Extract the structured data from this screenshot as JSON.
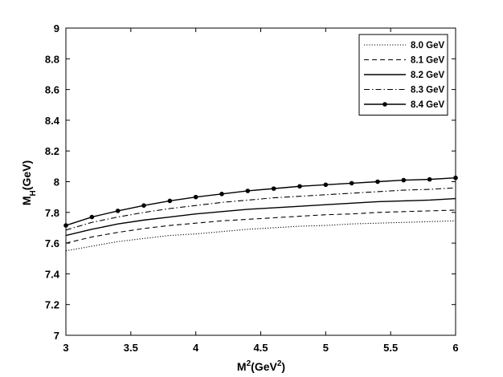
{
  "chart_data": {
    "type": "line",
    "xlabel": {
      "base": "M",
      "sup": "2",
      "rest": "(GeV",
      "sup2": "2",
      "end": ")"
    },
    "ylabel": {
      "base": "M",
      "sub": "H",
      "rest": "(GeV)"
    },
    "xlim": [
      3,
      6
    ],
    "ylim": [
      7,
      9
    ],
    "xticks": [
      3,
      3.5,
      4,
      4.5,
      5,
      5.5,
      6
    ],
    "xtick_labels": [
      "3",
      "3.5",
      "4",
      "4.5",
      "5",
      "5.5",
      "6"
    ],
    "yticks": [
      7,
      7.2,
      7.4,
      7.6,
      7.8,
      8,
      8.2,
      8.4,
      8.6,
      8.8,
      9
    ],
    "ytick_labels": [
      "7",
      "7.2",
      "7.4",
      "7.6",
      "7.8",
      "8",
      "8.2",
      "8.4",
      "8.6",
      "8.8",
      "9"
    ],
    "grid": false,
    "legend_position": "top-right",
    "x": [
      3.0,
      3.2,
      3.4,
      3.6,
      3.8,
      4.0,
      4.2,
      4.4,
      4.6,
      4.8,
      5.0,
      5.2,
      5.4,
      5.6,
      5.8,
      6.0
    ],
    "series": [
      {
        "name": "8.0 GeV",
        "style": "dotted",
        "values": [
          7.55,
          7.58,
          7.61,
          7.63,
          7.65,
          7.66,
          7.675,
          7.69,
          7.7,
          7.71,
          7.715,
          7.725,
          7.73,
          7.735,
          7.74,
          7.745
        ]
      },
      {
        "name": "8.1 GeV",
        "style": "dashed",
        "values": [
          7.6,
          7.64,
          7.67,
          7.695,
          7.715,
          7.73,
          7.745,
          7.755,
          7.765,
          7.775,
          7.785,
          7.79,
          7.8,
          7.805,
          7.81,
          7.815
        ]
      },
      {
        "name": "8.2 GeV",
        "style": "solid",
        "values": [
          7.65,
          7.69,
          7.725,
          7.75,
          7.77,
          7.79,
          7.805,
          7.82,
          7.83,
          7.84,
          7.85,
          7.86,
          7.87,
          7.875,
          7.88,
          7.89
        ]
      },
      {
        "name": "8.3 GeV",
        "style": "dashdot",
        "values": [
          7.685,
          7.735,
          7.77,
          7.8,
          7.825,
          7.845,
          7.865,
          7.88,
          7.895,
          7.905,
          7.915,
          7.925,
          7.935,
          7.945,
          7.95,
          7.96
        ]
      },
      {
        "name": "8.4 GeV",
        "style": "solid-marker",
        "values": [
          7.715,
          7.77,
          7.81,
          7.845,
          7.875,
          7.9,
          7.92,
          7.94,
          7.955,
          7.97,
          7.98,
          7.99,
          8.0,
          8.01,
          8.015,
          8.025
        ]
      }
    ]
  }
}
